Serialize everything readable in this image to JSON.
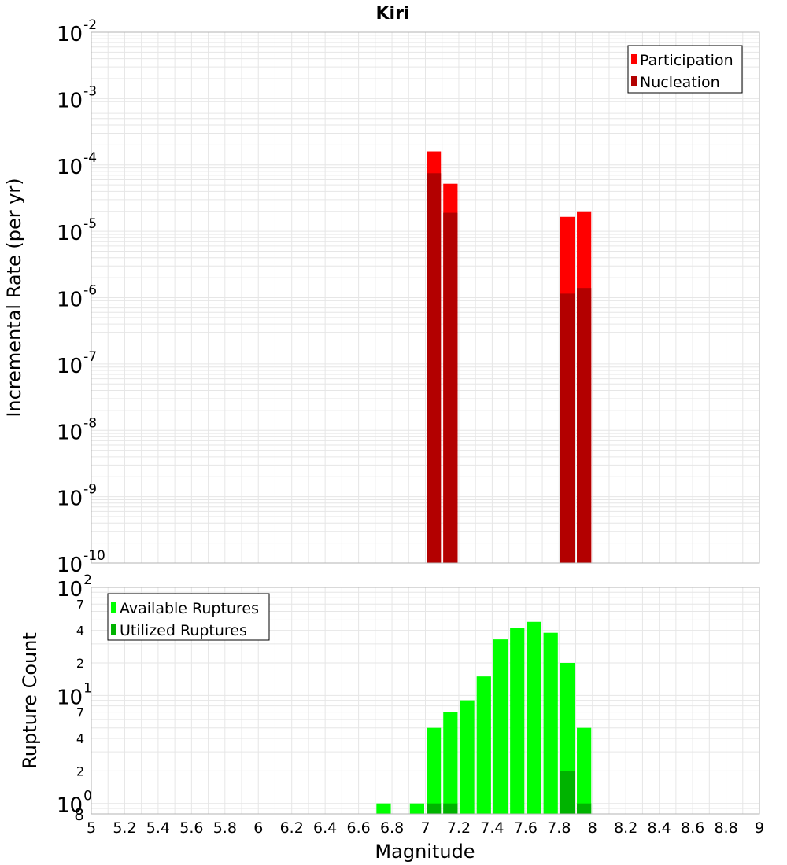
{
  "title": "Kiri",
  "x_axis": {
    "label": "Magnitude",
    "range": [
      5,
      9
    ],
    "tick_labels": [
      "5",
      "5.2",
      "5.4",
      "5.6",
      "5.8",
      "6",
      "6.2",
      "6.4",
      "6.6",
      "6.8",
      "7",
      "7.2",
      "7.4",
      "7.6",
      "7.8",
      "8",
      "8.2",
      "8.4",
      "8.6",
      "8.8",
      "9"
    ]
  },
  "colors": {
    "participation": "#ff0000",
    "nucleation": "#b30000",
    "available": "#00ff00",
    "utilized": "#00b300",
    "grid": "#e6e6e6",
    "frame": "#b3b3b3"
  },
  "chart_data": [
    {
      "type": "bar",
      "panel": "top",
      "ylabel": "Incremental Rate (per yr)",
      "yscale": "log",
      "ylim": [
        1e-10,
        0.01
      ],
      "ytick_exponents": [
        -2,
        -3,
        -4,
        -5,
        -6,
        -7,
        -8,
        -9,
        -10
      ],
      "grid": true,
      "legend": {
        "position": "top-right",
        "entries": [
          "Participation",
          "Nucleation"
        ]
      },
      "series": [
        {
          "name": "Participation",
          "x": [
            7.05,
            7.15,
            7.85,
            7.95
          ],
          "values": [
            0.00016,
            5.2e-05,
            1.65e-05,
            2e-05
          ]
        },
        {
          "name": "Nucleation",
          "x": [
            7.05,
            7.15,
            7.85,
            7.95
          ],
          "values": [
            7.5e-05,
            1.9e-05,
            1.15e-06,
            1.4e-06
          ]
        }
      ]
    },
    {
      "type": "bar",
      "panel": "bottom",
      "ylabel": "Rupture Count",
      "yscale": "log",
      "ylim": [
        0.8,
        100
      ],
      "ytick_labels": [
        {
          "value": 100,
          "base": "10",
          "exp": "2"
        },
        {
          "value": 70,
          "label": "7"
        },
        {
          "value": 40,
          "label": "4"
        },
        {
          "value": 20,
          "label": "2"
        },
        {
          "value": 10,
          "base": "10",
          "exp": "1"
        },
        {
          "value": 7,
          "label": "7"
        },
        {
          "value": 4,
          "label": "4"
        },
        {
          "value": 2,
          "label": "2"
        },
        {
          "value": 1,
          "base": "10",
          "exp": "0"
        },
        {
          "value": 0.8,
          "label": "8"
        }
      ],
      "grid": true,
      "legend": {
        "position": "top-left",
        "entries": [
          "Available Ruptures",
          "Utilized Ruptures"
        ]
      },
      "series": [
        {
          "name": "Available Ruptures",
          "x": [
            6.75,
            6.95,
            7.05,
            7.15,
            7.25,
            7.35,
            7.45,
            7.55,
            7.65,
            7.75,
            7.85,
            7.95
          ],
          "values": [
            1,
            1,
            5,
            7,
            9,
            15,
            33,
            42,
            48,
            38,
            20,
            5
          ]
        },
        {
          "name": "Utilized Ruptures",
          "x": [
            7.05,
            7.15,
            7.85,
            7.95
          ],
          "values": [
            1,
            1,
            2,
            1
          ]
        }
      ]
    }
  ]
}
